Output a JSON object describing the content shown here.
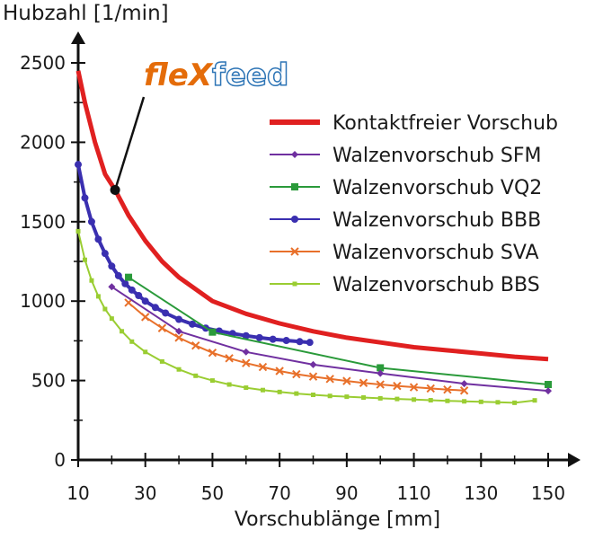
{
  "brand": {
    "part1": "fleX",
    "part2": "feed"
  },
  "chart_data": {
    "type": "line",
    "ylabel": "Hubzahl [1/min]",
    "xlabel": "Vorschublänge [mm]",
    "xlim": [
      10,
      155
    ],
    "ylim": [
      0,
      2650
    ],
    "xticks": [
      10,
      30,
      50,
      70,
      90,
      110,
      130,
      150
    ],
    "yticks": [
      0,
      500,
      1000,
      1500,
      2000,
      2500
    ],
    "legend_position": "right",
    "annotation": {
      "label": "fleXfeed",
      "points_to": [
        21,
        1700
      ]
    },
    "series": [
      {
        "name": "Kontaktfreier Vorschub",
        "color": "#e02020",
        "marker": "none",
        "x": [
          10,
          12,
          15,
          18,
          21,
          25,
          30,
          35,
          40,
          50,
          60,
          70,
          80,
          90,
          100,
          110,
          120,
          130,
          140,
          150
        ],
        "y": [
          2450,
          2250,
          2000,
          1800,
          1700,
          1540,
          1380,
          1250,
          1150,
          1000,
          920,
          860,
          810,
          770,
          740,
          710,
          690,
          670,
          650,
          635
        ]
      },
      {
        "name": "Walzenvorschub SFM",
        "color": "#7030a0",
        "marker": "diamond",
        "x": [
          20,
          40,
          60,
          80,
          100,
          125,
          150
        ],
        "y": [
          1090,
          810,
          680,
          600,
          545,
          480,
          435
        ]
      },
      {
        "name": "Walzenvorschub VQ2",
        "color": "#2a9a3a",
        "marker": "square",
        "x": [
          25,
          50,
          100,
          150
        ],
        "y": [
          1150,
          805,
          580,
          475
        ]
      },
      {
        "name": "Walzenvorschub BBB",
        "color": "#3a2fb0",
        "marker": "circle",
        "x": [
          10,
          12,
          14,
          16,
          18,
          20,
          22,
          24,
          26,
          28,
          30,
          33,
          36,
          40,
          44,
          48,
          52,
          56,
          60,
          64,
          68,
          72,
          76,
          79
        ],
        "y": [
          1860,
          1650,
          1500,
          1390,
          1300,
          1220,
          1160,
          1110,
          1070,
          1035,
          1000,
          960,
          925,
          885,
          855,
          830,
          812,
          796,
          782,
          770,
          760,
          752,
          745,
          740
        ]
      },
      {
        "name": "Walzenvorschub SVA",
        "color": "#e8702a",
        "marker": "cross",
        "x": [
          25,
          30,
          35,
          40,
          45,
          50,
          55,
          60,
          65,
          70,
          75,
          80,
          85,
          90,
          95,
          100,
          105,
          110,
          115,
          120,
          125
        ],
        "y": [
          990,
          900,
          830,
          770,
          720,
          675,
          640,
          610,
          585,
          560,
          540,
          525,
          510,
          497,
          485,
          475,
          466,
          458,
          450,
          443,
          437
        ]
      },
      {
        "name": "Walzenvorschub BBS",
        "color": "#9acd32",
        "marker": "square-small",
        "x": [
          10,
          12,
          14,
          16,
          18,
          20,
          23,
          26,
          30,
          35,
          40,
          45,
          50,
          55,
          60,
          65,
          70,
          75,
          80,
          85,
          90,
          95,
          100,
          105,
          110,
          115,
          120,
          125,
          130,
          135,
          140,
          146
        ],
        "y": [
          1440,
          1260,
          1130,
          1030,
          950,
          890,
          810,
          745,
          680,
          620,
          570,
          530,
          500,
          475,
          455,
          440,
          428,
          418,
          410,
          403,
          398,
          393,
          388,
          384,
          380,
          376,
          372,
          369,
          366,
          363,
          360,
          375
        ]
      }
    ]
  }
}
